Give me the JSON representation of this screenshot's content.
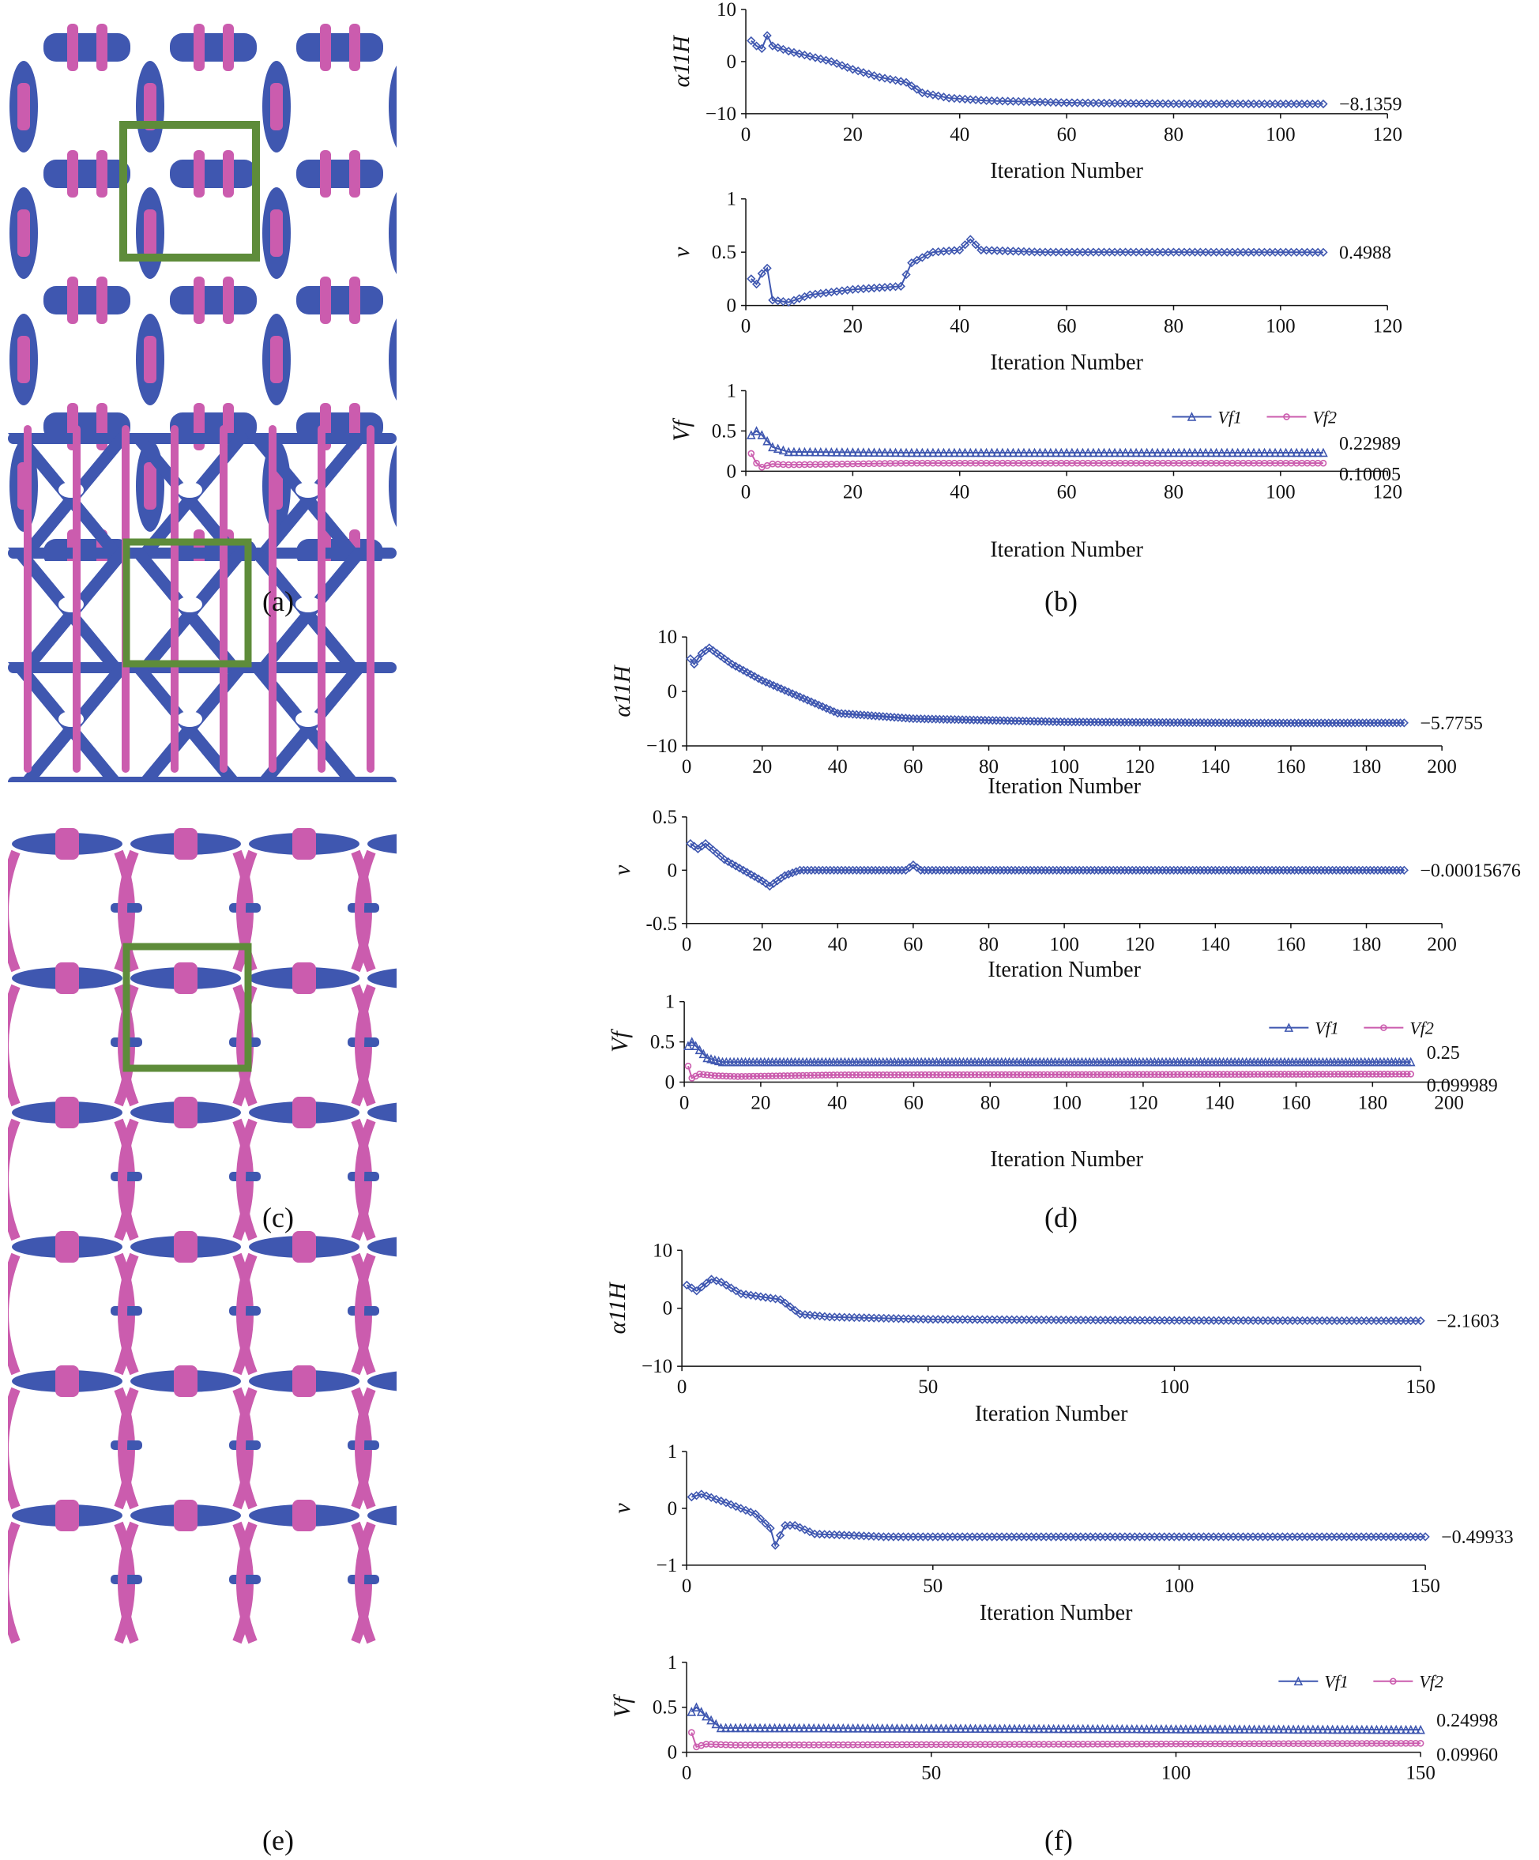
{
  "colors": {
    "blue": "#3F57B0",
    "magenta": "#CB5CAE",
    "green": "#5E8C3A",
    "axis": "#111111"
  },
  "panel_labels": {
    "a": "(a)",
    "b": "(b)",
    "c": "(c)",
    "d": "(d)",
    "e": "(e)",
    "f": "(f)"
  },
  "structures": [
    {
      "id": "a",
      "description_icon": "lattice-a"
    },
    {
      "id": "c",
      "description_icon": "lattice-c"
    },
    {
      "id": "e",
      "description_icon": "lattice-e"
    }
  ],
  "chart_data": [
    {
      "id": "b1",
      "type": "line",
      "ylabel": "α11H",
      "xlabel": "Iteration Number",
      "xlim": [
        0,
        120
      ],
      "xticks": [
        "0",
        "20",
        "40",
        "60",
        "80",
        "100",
        "120"
      ],
      "ylim": [
        -10,
        10
      ],
      "yticks": [
        "10",
        "0",
        "−10"
      ],
      "end_label": "−8.1359",
      "series": [
        {
          "color": "#3F57B0",
          "marker": "diamond",
          "points": [
            [
              1,
              4
            ],
            [
              2,
              3
            ],
            [
              3,
              2.5
            ],
            [
              4,
              5
            ],
            [
              5,
              3
            ],
            [
              8,
              2
            ],
            [
              12,
              1
            ],
            [
              16,
              0
            ],
            [
              20,
              -1.5
            ],
            [
              25,
              -3
            ],
            [
              30,
              -4
            ],
            [
              33,
              -6
            ],
            [
              38,
              -7
            ],
            [
              45,
              -7.5
            ],
            [
              60,
              -7.9
            ],
            [
              80,
              -8.1
            ],
            [
              108,
              -8.1359
            ]
          ]
        }
      ]
    },
    {
      "id": "b2",
      "type": "line",
      "ylabel": "ν",
      "xlabel": "Iteration Number",
      "xlim": [
        0,
        120
      ],
      "xticks": [
        "0",
        "20",
        "40",
        "60",
        "80",
        "100",
        "120"
      ],
      "ylim": [
        0,
        1
      ],
      "yticks": [
        "1",
        "0.5",
        "0"
      ],
      "end_label": "0.4988",
      "series": [
        {
          "color": "#3F57B0",
          "marker": "diamond",
          "points": [
            [
              1,
              0.25
            ],
            [
              2,
              0.2
            ],
            [
              3,
              0.3
            ],
            [
              4,
              0.35
            ],
            [
              5,
              0.05
            ],
            [
              8,
              0.03
            ],
            [
              12,
              0.1
            ],
            [
              20,
              0.15
            ],
            [
              29,
              0.18
            ],
            [
              31,
              0.4
            ],
            [
              35,
              0.5
            ],
            [
              40,
              0.52
            ],
            [
              42,
              0.62
            ],
            [
              44,
              0.52
            ],
            [
              55,
              0.5
            ],
            [
              80,
              0.5
            ],
            [
              108,
              0.4988
            ]
          ]
        }
      ]
    },
    {
      "id": "b3",
      "type": "line",
      "ylabel": "Vf",
      "xlabel": "Iteration Number",
      "xlim": [
        0,
        120
      ],
      "xticks": [
        "0",
        "20",
        "40",
        "60",
        "80",
        "100",
        "120"
      ],
      "ylim": [
        0,
        1
      ],
      "yticks": [
        "1",
        "0.5",
        "0"
      ],
      "legend": [
        "Vf1",
        "Vf2"
      ],
      "end_labels": [
        "0.22989",
        "0.10005"
      ],
      "series": [
        {
          "name": "Vf1",
          "color": "#3F57B0",
          "marker": "triangle",
          "points": [
            [
              1,
              0.45
            ],
            [
              2,
              0.5
            ],
            [
              3,
              0.45
            ],
            [
              5,
              0.3
            ],
            [
              8,
              0.24
            ],
            [
              30,
              0.23
            ],
            [
              108,
              0.22989
            ]
          ]
        },
        {
          "name": "Vf2",
          "color": "#CB5CAE",
          "marker": "circle",
          "points": [
            [
              1,
              0.22
            ],
            [
              2,
              0.1
            ],
            [
              3,
              0.05
            ],
            [
              5,
              0.09
            ],
            [
              8,
              0.08
            ],
            [
              30,
              0.1
            ],
            [
              108,
              0.10005
            ]
          ]
        }
      ]
    },
    {
      "id": "d1",
      "type": "line",
      "ylabel": "α11H",
      "xlabel": "Iteration Number",
      "xlim": [
        0,
        200
      ],
      "xticks": [
        "0",
        "20",
        "40",
        "60",
        "80",
        "100",
        "120",
        "140",
        "160",
        "180",
        "200"
      ],
      "ylim": [
        -10,
        10
      ],
      "yticks": [
        "10",
        "0",
        "−10"
      ],
      "end_label": "−5.7755",
      "series": [
        {
          "color": "#3F57B0",
          "marker": "diamond",
          "points": [
            [
              1,
              6
            ],
            [
              2,
              5
            ],
            [
              4,
              7
            ],
            [
              6,
              8
            ],
            [
              8,
              7
            ],
            [
              12,
              5
            ],
            [
              20,
              2
            ],
            [
              30,
              -1
            ],
            [
              40,
              -4
            ],
            [
              60,
              -5
            ],
            [
              100,
              -5.6
            ],
            [
              150,
              -5.8
            ],
            [
              190,
              -5.7755
            ]
          ]
        }
      ]
    },
    {
      "id": "d2",
      "type": "line",
      "ylabel": "ν",
      "xlabel": "Iteration Number",
      "xlim": [
        0,
        200
      ],
      "xticks": [
        "0",
        "20",
        "40",
        "60",
        "80",
        "100",
        "120",
        "140",
        "160",
        "180",
        "200"
      ],
      "ylim": [
        -0.5,
        0.5
      ],
      "yticks": [
        "0.5",
        "0",
        "-0.5"
      ],
      "end_label": "−0.00015676",
      "series": [
        {
          "color": "#3F57B0",
          "marker": "diamond",
          "points": [
            [
              1,
              0.25
            ],
            [
              3,
              0.2
            ],
            [
              5,
              0.25
            ],
            [
              10,
              0.1
            ],
            [
              15,
              0.0
            ],
            [
              20,
              -0.1
            ],
            [
              22,
              -0.15
            ],
            [
              26,
              -0.05
            ],
            [
              30,
              0
            ],
            [
              58,
              0
            ],
            [
              60,
              0.05
            ],
            [
              62,
              0
            ],
            [
              100,
              0
            ],
            [
              190,
              -0.00015676
            ]
          ]
        }
      ]
    },
    {
      "id": "d3",
      "type": "line",
      "ylabel": "Vf",
      "xlabel": "Iteration Number",
      "xlim": [
        0,
        200
      ],
      "xticks": [
        "0",
        "20",
        "40",
        "60",
        "80",
        "100",
        "120",
        "140",
        "160",
        "180",
        "200"
      ],
      "ylim": [
        0,
        1
      ],
      "yticks": [
        "1",
        "0.5",
        "0"
      ],
      "legend": [
        "Vf1",
        "Vf2"
      ],
      "end_labels": [
        "0.25",
        "0.099989"
      ],
      "series": [
        {
          "name": "Vf1",
          "color": "#3F57B0",
          "marker": "triangle",
          "points": [
            [
              1,
              0.45
            ],
            [
              2,
              0.5
            ],
            [
              4,
              0.4
            ],
            [
              6,
              0.3
            ],
            [
              10,
              0.25
            ],
            [
              190,
              0.25
            ]
          ]
        },
        {
          "name": "Vf2",
          "color": "#CB5CAE",
          "marker": "circle",
          "points": [
            [
              1,
              0.2
            ],
            [
              2,
              0.05
            ],
            [
              4,
              0.1
            ],
            [
              8,
              0.08
            ],
            [
              14,
              0.07
            ],
            [
              40,
              0.09
            ],
            [
              190,
              0.099989
            ]
          ]
        }
      ]
    },
    {
      "id": "f1",
      "type": "line",
      "ylabel": "α11H",
      "xlabel": "Iteration Number",
      "xlim": [
        0,
        150
      ],
      "xticks": [
        "0",
        "50",
        "100",
        "150"
      ],
      "ylim": [
        -10,
        10
      ],
      "yticks": [
        "10",
        "0",
        "−10"
      ],
      "end_label": "−2.1603",
      "series": [
        {
          "color": "#3F57B0",
          "marker": "diamond",
          "points": [
            [
              1,
              4
            ],
            [
              3,
              3
            ],
            [
              6,
              5
            ],
            [
              8,
              4.5
            ],
            [
              12,
              2.5
            ],
            [
              20,
              1.5
            ],
            [
              24,
              -1
            ],
            [
              30,
              -1.5
            ],
            [
              50,
              -1.9
            ],
            [
              100,
              -2.1
            ],
            [
              150,
              -2.1603
            ]
          ]
        }
      ]
    },
    {
      "id": "f2",
      "type": "line",
      "ylabel": "ν",
      "xlabel": "Iteration Number",
      "xlim": [
        0,
        150
      ],
      "xticks": [
        "0",
        "50",
        "100",
        "150"
      ],
      "ylim": [
        -1,
        1
      ],
      "yticks": [
        "1",
        "0",
        "−1"
      ],
      "end_label": "−0.49933",
      "series": [
        {
          "color": "#3F57B0",
          "marker": "diamond",
          "points": [
            [
              1,
              0.2
            ],
            [
              3,
              0.25
            ],
            [
              8,
              0.1
            ],
            [
              14,
              -0.1
            ],
            [
              17,
              -0.35
            ],
            [
              18,
              -0.65
            ],
            [
              20,
              -0.3
            ],
            [
              22,
              -0.3
            ],
            [
              26,
              -0.45
            ],
            [
              40,
              -0.5
            ],
            [
              100,
              -0.5
            ],
            [
              150,
              -0.49933
            ]
          ]
        }
      ]
    },
    {
      "id": "f3",
      "type": "line",
      "ylabel": "Vf",
      "xlabel": "",
      "xlim": [
        0,
        150
      ],
      "xticks": [
        "0",
        "50",
        "100",
        "150"
      ],
      "ylim": [
        0,
        1
      ],
      "yticks": [
        "1",
        "0.5",
        "0"
      ],
      "legend": [
        "Vf1",
        "Vf2"
      ],
      "end_labels": [
        "0.24998",
        "0.09960"
      ],
      "series": [
        {
          "name": "Vf1",
          "color": "#3F57B0",
          "marker": "triangle",
          "points": [
            [
              1,
              0.45
            ],
            [
              2,
              0.5
            ],
            [
              4,
              0.4
            ],
            [
              7,
              0.27
            ],
            [
              150,
              0.24998
            ]
          ]
        },
        {
          "name": "Vf2",
          "color": "#CB5CAE",
          "marker": "circle",
          "points": [
            [
              1,
              0.22
            ],
            [
              2,
              0.06
            ],
            [
              4,
              0.09
            ],
            [
              10,
              0.08
            ],
            [
              150,
              0.0996
            ]
          ]
        }
      ]
    }
  ]
}
